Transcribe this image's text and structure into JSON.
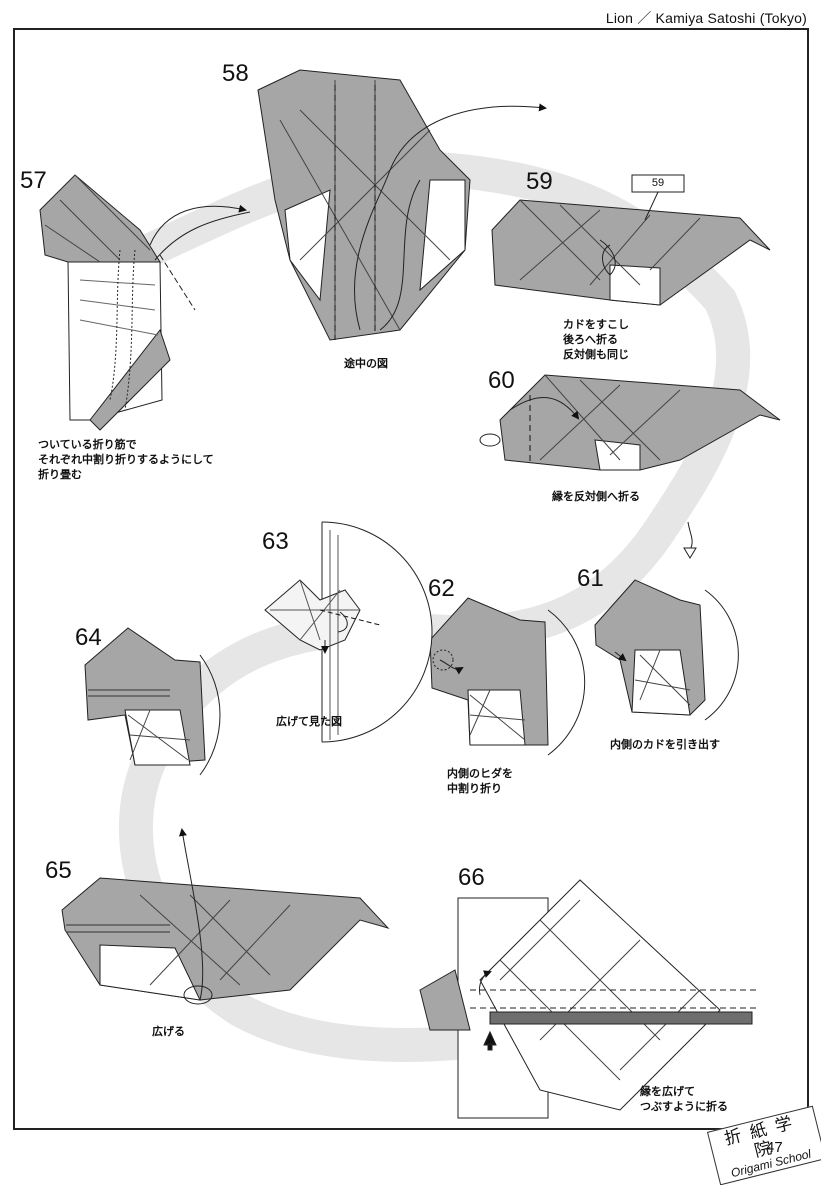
{
  "header": {
    "title": "Lion ／ Kamiya Satoshi (Tokyo)"
  },
  "steps": {
    "s57": "57",
    "s58": "58",
    "s59": "59",
    "s60": "60",
    "s61": "61",
    "s62": "62",
    "s63": "63",
    "s64": "64",
    "s65": "65",
    "s66": "66"
  },
  "callout": {
    "label": "59"
  },
  "notes": {
    "n57": "ついている折り筋で\nそれぞれ中割り折りするようにして\n折り畳む",
    "n58": "途中の図",
    "n59": "カドをすこし\n後ろへ折る\n反対側も同じ",
    "n60": "縁を反対側へ折る",
    "n61": "内側のカドを引き出す",
    "n62": "内側のヒダを\n中割り折り",
    "n63": "広げて見た図",
    "n65": "広げる",
    "n66": "縁を広げて\nつぶすように折る"
  },
  "stamp": {
    "kanji": "折紙学院",
    "school": "Origami School"
  },
  "page": {
    "number": "47"
  },
  "colors": {
    "paper_gray": "#a6a6a6",
    "dark_gray": "#6e6e6e",
    "band": "#e4e4e4",
    "edge_dark": "#555555"
  }
}
